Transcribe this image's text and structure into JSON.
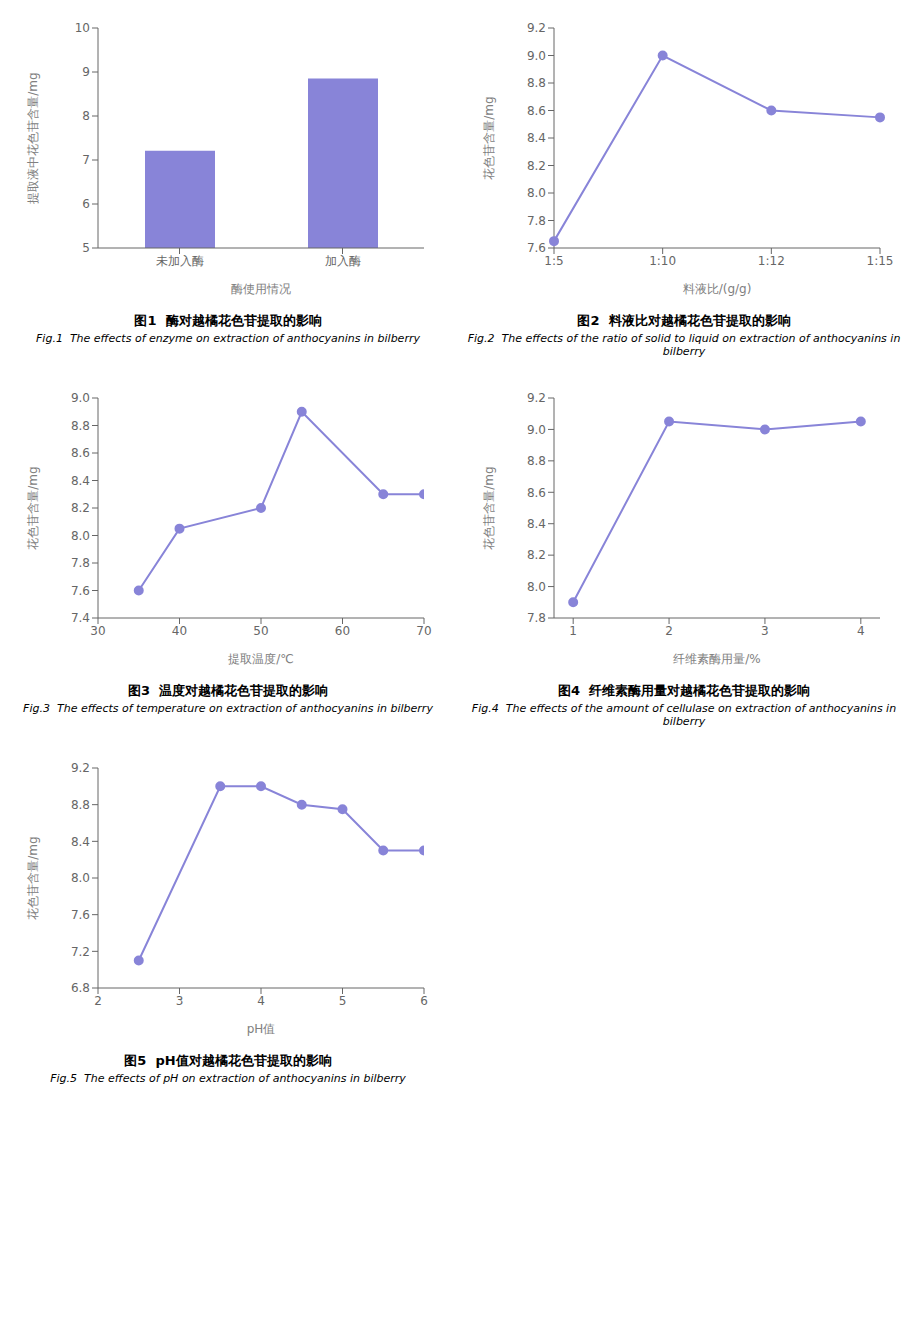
{
  "chart_data": [
    {
      "type": "bar",
      "title": "图1  酶对越橘花色苷提取的影响",
      "subtitle": "Fig.1  The effects of enzyme on extraction of anthocyanins in bilberry",
      "xlabel": "酶使用情况",
      "ylabel": "提取液中花色苷含量/mg",
      "categories": [
        "未加入酶",
        "加入酶"
      ],
      "values": [
        7.21,
        8.85
      ],
      "ylim": [
        5,
        10
      ],
      "yticks": [
        5,
        6,
        7,
        8,
        9,
        10
      ],
      "color": "#8884d8",
      "grid": false
    },
    {
      "type": "line",
      "title": "图2  料液比对越橘花色苷提取的影响",
      "subtitle": "Fig.2  The effects of the ratio of solid to liquid on extraction of anthocyanins in bilberry",
      "xlabel": "料液比/(g/g)",
      "ylabel": "花色苷含量/mg",
      "categories": [
        "1:5",
        "1:10",
        "1:12",
        "1:15"
      ],
      "values": [
        7.65,
        9.0,
        8.6,
        8.55
      ],
      "ylim": [
        7.6,
        9.2
      ],
      "yticks": [
        7.6,
        7.8,
        {
          "value": 8,
          "label": "8.0"
        },
        8.2,
        8.4,
        8.6,
        8.8,
        {
          "value": 9,
          "label": "9.0"
        },
        9.2
      ],
      "color": "#8884d8",
      "marker": "circle",
      "grid": false
    },
    {
      "type": "line",
      "title": "图3  温度对越橘花色苷提取的影响",
      "subtitle": "Fig.3  The effects of temperature on extraction of anthocyanins in bilberry",
      "xlabel": "提取温度/℃",
      "ylabel": "花色苷含量/mg",
      "x": [
        35,
        40,
        50,
        55,
        65,
        70
      ],
      "values": [
        7.6,
        8.05,
        8.2,
        8.9,
        8.3,
        8.3
      ],
      "xlim": [
        30,
        70
      ],
      "xticks": [
        30,
        40,
        50,
        60,
        70
      ],
      "ylim": [
        7.4,
        9.0
      ],
      "yticks": [
        7.4,
        7.6,
        7.8,
        {
          "value": 8,
          "label": "8.0"
        },
        8.2,
        8.4,
        8.6,
        8.8,
        {
          "value": 9,
          "label": "9.0"
        }
      ],
      "color": "#8884d8",
      "marker": "circle",
      "grid": false
    },
    {
      "type": "line",
      "title": "图4  纤维素酶用量对越橘花色苷提取的影响",
      "subtitle": "Fig.4  The effects of the amount of cellulase on extraction of anthocyanins in bilberry",
      "xlabel": "纤维素酶用量/%",
      "ylabel": "花色苷含量/mg",
      "x": [
        1,
        2,
        3,
        4
      ],
      "values": [
        7.9,
        9.05,
        9.0,
        9.05
      ],
      "xlim": [
        0.8,
        4.2
      ],
      "xticks": [
        1,
        2,
        3,
        4
      ],
      "ylim": [
        7.8,
        9.2
      ],
      "yticks": [
        7.8,
        {
          "value": 8,
          "label": "8.0"
        },
        8.2,
        8.4,
        8.6,
        8.8,
        {
          "value": 9,
          "label": "9.0"
        },
        9.2
      ],
      "color": "#8884d8",
      "marker": "circle",
      "grid": false
    },
    {
      "type": "line",
      "title": "图5  pH值对越橘花色苷提取的影响",
      "subtitle": "Fig.5  The effects of pH on extraction of anthocyanins in bilberry",
      "xlabel": "pH值",
      "ylabel": "花色苷含量/mg",
      "x": [
        2.5,
        3.5,
        4.0,
        4.5,
        5.0,
        5.5,
        6.0
      ],
      "values": [
        7.1,
        9.0,
        9.0,
        8.8,
        8.75,
        8.3,
        8.3
      ],
      "xlim": [
        2,
        6
      ],
      "xticks": [
        2,
        3,
        4,
        5,
        6
      ],
      "ylim": [
        6.8,
        9.2
      ],
      "yticks": [
        6.8,
        7.2,
        7.6,
        {
          "value": 8,
          "label": "8.0"
        },
        8.4,
        8.8,
        9.2
      ],
      "color": "#8884d8",
      "marker": "circle",
      "grid": false
    }
  ]
}
